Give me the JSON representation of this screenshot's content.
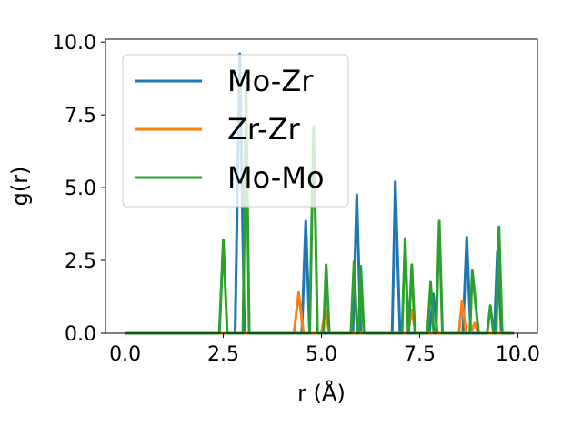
{
  "chart_data": {
    "type": "line",
    "xlabel": "r (Å)",
    "ylabel": "g(r)",
    "xlim": [
      -0.5,
      10.5
    ],
    "ylim": [
      0,
      10.1
    ],
    "xticks": [
      "0.0",
      "2.5",
      "5.0",
      "7.5",
      "10.0"
    ],
    "yticks": [
      "0.0",
      "2.5",
      "5.0",
      "7.5",
      "10.0"
    ],
    "grid": false,
    "legend": "upper-left",
    "colors": {
      "Mo-Zr": "#1f77b4",
      "Zr-Zr": "#ff7f0e",
      "Mo-Mo": "#2ca02c"
    },
    "series": [
      {
        "name": "Mo-Zr",
        "points": [
          [
            0.0,
            0
          ],
          [
            2.8,
            0
          ],
          [
            2.92,
            9.6
          ],
          [
            3.04,
            0
          ],
          [
            4.5,
            0
          ],
          [
            4.6,
            3.85
          ],
          [
            4.7,
            0
          ],
          [
            5.8,
            0
          ],
          [
            5.9,
            4.75
          ],
          [
            6.0,
            0
          ],
          [
            6.8,
            0
          ],
          [
            6.88,
            5.2
          ],
          [
            7.0,
            0
          ],
          [
            7.75,
            0
          ],
          [
            7.85,
            1.35
          ],
          [
            7.95,
            0
          ],
          [
            8.6,
            0
          ],
          [
            8.7,
            3.3
          ],
          [
            8.8,
            0
          ],
          [
            9.4,
            0
          ],
          [
            9.48,
            2.8
          ],
          [
            9.58,
            0
          ],
          [
            9.9,
            0
          ]
        ]
      },
      {
        "name": "Zr-Zr",
        "points": [
          [
            0.0,
            0
          ],
          [
            4.3,
            0
          ],
          [
            4.42,
            1.4
          ],
          [
            4.54,
            0
          ],
          [
            5.0,
            0
          ],
          [
            5.1,
            0.8
          ],
          [
            5.2,
            0
          ],
          [
            7.2,
            0
          ],
          [
            7.3,
            0.8
          ],
          [
            7.4,
            0
          ],
          [
            8.5,
            0
          ],
          [
            8.58,
            1.1
          ],
          [
            8.68,
            0
          ],
          [
            8.8,
            0
          ],
          [
            8.9,
            0.35
          ],
          [
            9.0,
            0
          ],
          [
            9.9,
            0
          ]
        ]
      },
      {
        "name": "Mo-Mo",
        "points": [
          [
            0.0,
            0
          ],
          [
            2.4,
            0
          ],
          [
            2.5,
            3.2
          ],
          [
            2.6,
            0
          ],
          [
            3.0,
            0
          ],
          [
            3.08,
            8.3
          ],
          [
            3.16,
            0
          ],
          [
            4.7,
            0
          ],
          [
            4.8,
            7.1
          ],
          [
            4.9,
            0
          ],
          [
            5.05,
            0
          ],
          [
            5.12,
            2.35
          ],
          [
            5.2,
            0
          ],
          [
            5.75,
            0
          ],
          [
            5.83,
            2.45
          ],
          [
            5.91,
            0
          ],
          [
            5.95,
            0
          ],
          [
            6.0,
            2.3
          ],
          [
            6.08,
            0
          ],
          [
            7.05,
            0
          ],
          [
            7.13,
            3.25
          ],
          [
            7.21,
            0
          ],
          [
            7.22,
            0
          ],
          [
            7.3,
            2.35
          ],
          [
            7.38,
            0
          ],
          [
            7.7,
            0
          ],
          [
            7.78,
            1.75
          ],
          [
            7.86,
            0
          ],
          [
            7.92,
            0
          ],
          [
            8.0,
            3.85
          ],
          [
            8.08,
            0
          ],
          [
            8.78,
            0
          ],
          [
            8.84,
            2.15
          ],
          [
            9.0,
            0
          ],
          [
            9.22,
            0
          ],
          [
            9.3,
            0.95
          ],
          [
            9.38,
            0
          ],
          [
            9.45,
            0
          ],
          [
            9.52,
            3.65
          ],
          [
            9.6,
            0
          ],
          [
            9.9,
            0
          ]
        ]
      }
    ]
  }
}
